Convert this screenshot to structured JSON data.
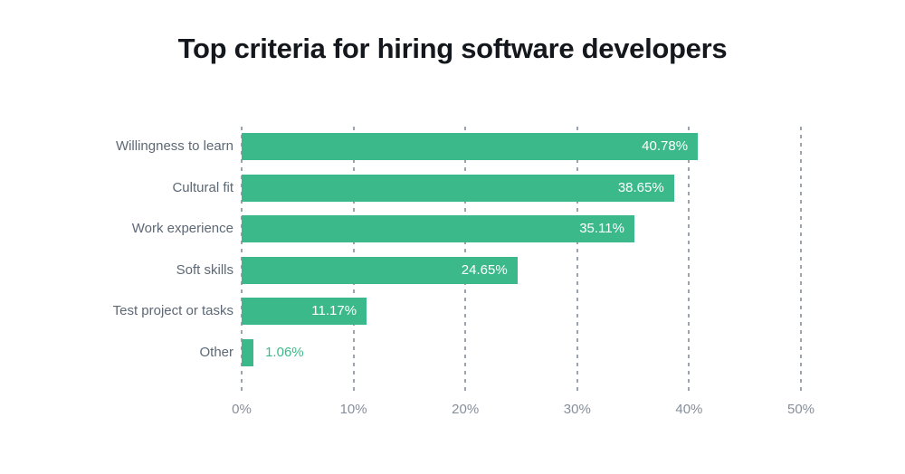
{
  "title": "Top criteria for hiring software developers",
  "colors": {
    "bar": "#3cb98b",
    "title_text": "#14181d",
    "category_label": "#5d6875",
    "tick_label": "#868f9b",
    "gridline": "#9ba3ad",
    "value_label_inside": "#ffffff",
    "value_label_outside": "#3cb98b",
    "background": "#ffffff"
  },
  "chart_data": {
    "type": "bar",
    "orientation": "horizontal",
    "title": "Top criteria for hiring software developers",
    "categories": [
      "Willingness to learn",
      "Cultural fit",
      "Work experience",
      "Soft skills",
      "Test project or tasks",
      "Other"
    ],
    "values": [
      40.78,
      38.65,
      35.11,
      24.65,
      11.17,
      1.06
    ],
    "value_labels": [
      "40.78%",
      "38.65%",
      "35.11%",
      "24.65%",
      "11.17%",
      "1.06%"
    ],
    "xlabel": "",
    "ylabel": "",
    "xlim": [
      0,
      50
    ],
    "x_tick_values": [
      0,
      10,
      20,
      30,
      40,
      50
    ],
    "x_tick_labels": [
      "0%",
      "10%",
      "20%",
      "30%",
      "40%",
      "50%"
    ],
    "grid": "vertical-dashed",
    "legend": "none"
  }
}
